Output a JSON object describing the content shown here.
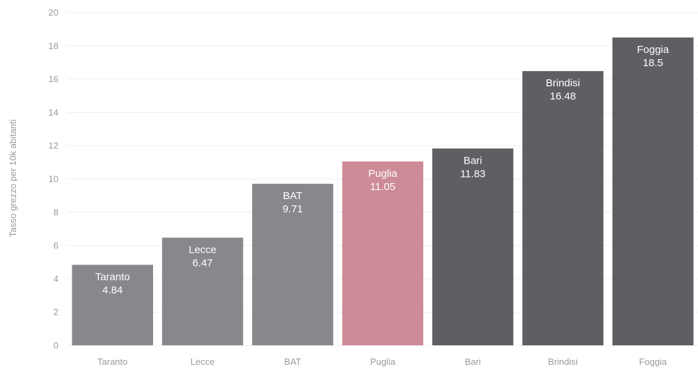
{
  "chart_data": {
    "type": "bar",
    "categories": [
      "Taranto",
      "Lecce",
      "BAT",
      "Puglia",
      "Bari",
      "Brindisi",
      "Foggia"
    ],
    "values": [
      4.84,
      6.47,
      9.71,
      11.05,
      11.83,
      16.48,
      18.5
    ],
    "value_labels": [
      "4.84",
      "6.47",
      "9.71",
      "11.05",
      "11.83",
      "16.48",
      "18.5"
    ],
    "title": "",
    "xlabel": "",
    "ylabel": "Tasso grezzo per 10k abitanti",
    "ylim": [
      0,
      20
    ],
    "yticks": [
      0,
      2,
      4,
      6,
      8,
      10,
      12,
      14,
      16,
      18,
      20
    ],
    "grid": true,
    "legend": "none",
    "colors": {
      "light": "#87888c",
      "highlight": "#cd8a97",
      "dark": "#5e5f63"
    },
    "bar_colors": [
      "#87888c",
      "#87888c",
      "#87888c",
      "#cd8a97",
      "#5e5f63",
      "#5e5f63",
      "#5e5f63"
    ]
  }
}
